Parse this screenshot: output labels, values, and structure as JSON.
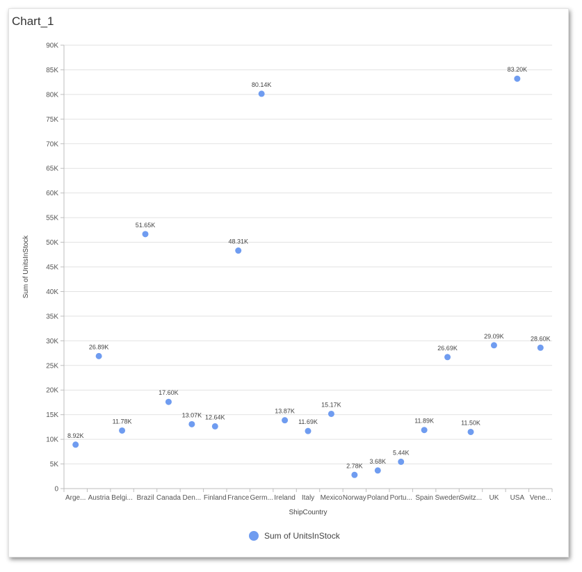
{
  "chart_data": {
    "type": "scatter",
    "title": "Chart_1",
    "xlabel": "ShipCountry",
    "ylabel": "Sum of UnitsInStock",
    "ylim": [
      0,
      90000
    ],
    "ytick_labels": [
      "0",
      "5K",
      "10K",
      "15K",
      "20K",
      "25K",
      "30K",
      "35K",
      "40K",
      "45K",
      "50K",
      "55K",
      "60K",
      "65K",
      "70K",
      "75K",
      "80K",
      "85K",
      "90K"
    ],
    "grid": true,
    "legend": "bottom",
    "color": "#6f9cf0",
    "categories": [
      "Arge...",
      "Austria",
      "Belgi...",
      "Brazil",
      "Canada",
      "Den...",
      "Finland",
      "France",
      "Germ...",
      "Ireland",
      "Italy",
      "Mexico",
      "Norway",
      "Poland",
      "Portu...",
      "Spain",
      "Sweden",
      "Switz...",
      "UK",
      "USA",
      "Vene..."
    ],
    "series": [
      {
        "name": "Sum of UnitsInStock",
        "values": [
          8920,
          26890,
          11780,
          51650,
          17600,
          13070,
          12640,
          48310,
          80140,
          13870,
          11690,
          15170,
          2780,
          3680,
          5440,
          11890,
          26690,
          11500,
          29090,
          83200,
          28600
        ],
        "labels": [
          "8.92K",
          "26.89K",
          "11.78K",
          "51.65K",
          "17.60K",
          "13.07K",
          "12.64K",
          "48.31K",
          "80.14K",
          "13.87K",
          "11.69K",
          "15.17K",
          "2.78K",
          "3.68K",
          "5.44K",
          "11.89K",
          "26.69K",
          "11.50K",
          "29.09K",
          "83.20K",
          "28.60K"
        ]
      }
    ]
  }
}
